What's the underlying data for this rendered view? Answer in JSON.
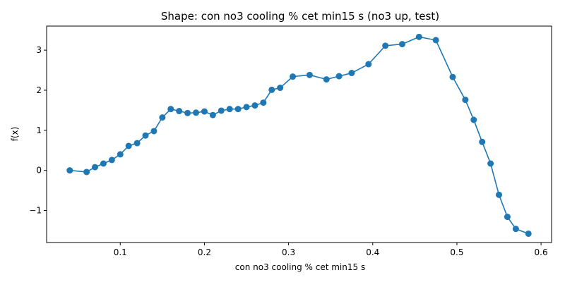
{
  "chart_data": {
    "type": "line",
    "title": "Shape: con no3 cooling % cet min15 s (no3 up, test)",
    "xlabel": "con no3 cooling % cet min15 s",
    "ylabel": "f(x)",
    "xlim": [
      0.0125,
      0.6125
    ],
    "ylim": [
      -1.8,
      3.6
    ],
    "xticks": [
      0.1,
      0.2,
      0.3,
      0.4,
      0.5,
      0.6
    ],
    "xtick_labels": [
      "0.1",
      "0.2",
      "0.3",
      "0.4",
      "0.5",
      "0.6"
    ],
    "yticks": [
      -1,
      0,
      1,
      2,
      3
    ],
    "ytick_labels": [
      "−1",
      "0",
      "1",
      "2",
      "3"
    ],
    "grid": false,
    "color": "#1f77b4",
    "markers": true,
    "series": [
      {
        "x": [
          0.04,
          0.06,
          0.07,
          0.08,
          0.09,
          0.1,
          0.11,
          0.12,
          0.13,
          0.14,
          0.15,
          0.16,
          0.17,
          0.18,
          0.19,
          0.2,
          0.21,
          0.22,
          0.23,
          0.24,
          0.25,
          0.26,
          0.27,
          0.28,
          0.29,
          0.305,
          0.325,
          0.345,
          0.36,
          0.375,
          0.395,
          0.415,
          0.435,
          0.455,
          0.475,
          0.495,
          0.51,
          0.52,
          0.53,
          0.54,
          0.55,
          0.56,
          0.57,
          0.585
        ],
        "y": [
          0.0,
          -0.04,
          0.08,
          0.17,
          0.26,
          0.4,
          0.61,
          0.68,
          0.87,
          0.98,
          1.32,
          1.53,
          1.48,
          1.43,
          1.44,
          1.47,
          1.38,
          1.49,
          1.53,
          1.53,
          1.58,
          1.62,
          1.69,
          2.01,
          2.06,
          2.34,
          2.38,
          2.27,
          2.35,
          2.43,
          2.65,
          3.11,
          3.15,
          3.33,
          3.25,
          2.33,
          1.76,
          1.26,
          0.71,
          0.17,
          -0.61,
          -1.16,
          -1.46,
          -1.58
        ]
      }
    ]
  }
}
